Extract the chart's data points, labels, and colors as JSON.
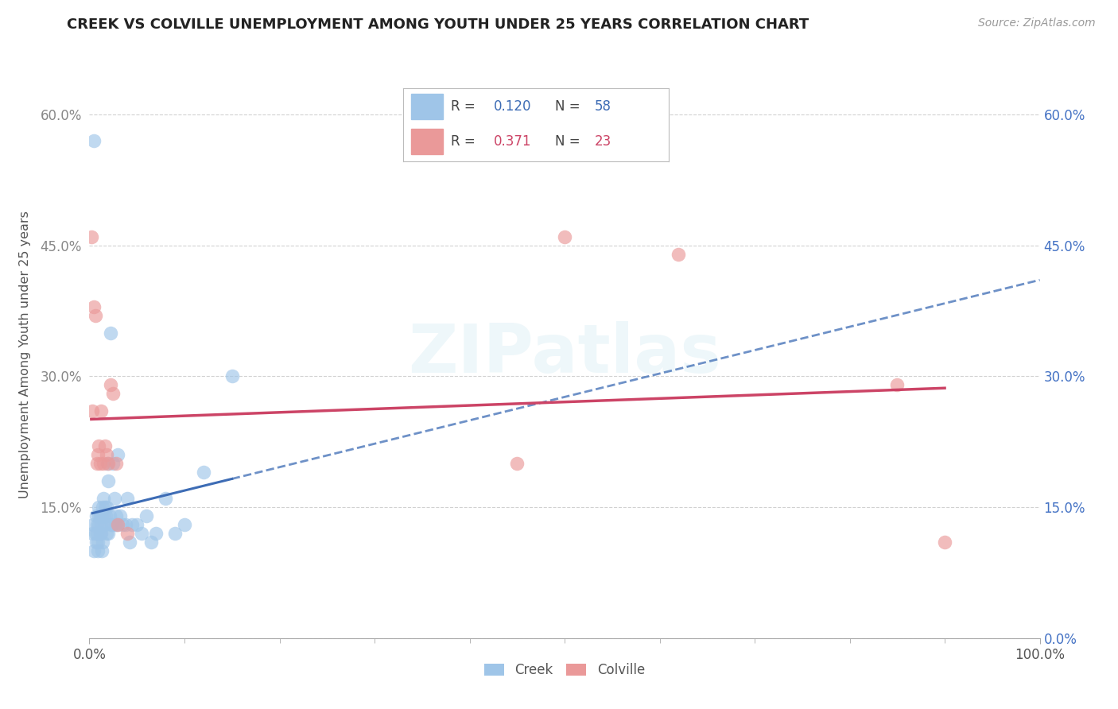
{
  "title": "CREEK VS COLVILLE UNEMPLOYMENT AMONG YOUTH UNDER 25 YEARS CORRELATION CHART",
  "source": "Source: ZipAtlas.com",
  "ylabel": "Unemployment Among Youth under 25 years",
  "xlim": [
    0,
    1.0
  ],
  "ylim": [
    0,
    0.65
  ],
  "xtick_positions": [
    0.0,
    1.0
  ],
  "xticklabels": [
    "0.0%",
    "100.0%"
  ],
  "yticks": [
    0.0,
    0.15,
    0.3,
    0.45,
    0.6
  ],
  "yticklabels_left": [
    "",
    "15.0%",
    "30.0%",
    "45.0%",
    "60.0%"
  ],
  "yticklabels_right": [
    "0.0%",
    "15.0%",
    "30.0%",
    "45.0%",
    "60.0%"
  ],
  "right_ytick_color": "#4472c4",
  "left_ytick_color": "#888888",
  "creek_color": "#9fc5e8",
  "colville_color": "#ea9999",
  "creek_line_color": "#3d6cb5",
  "colville_line_color": "#cc4466",
  "creek_R": 0.12,
  "creek_N": 58,
  "colville_R": 0.371,
  "colville_N": 23,
  "background_color": "#ffffff",
  "grid_color": "#cccccc",
  "watermark_text": "ZIPatlas",
  "creek_x": [
    0.003,
    0.004,
    0.005,
    0.005,
    0.006,
    0.007,
    0.007,
    0.008,
    0.008,
    0.009,
    0.009,
    0.01,
    0.01,
    0.01,
    0.011,
    0.011,
    0.012,
    0.012,
    0.013,
    0.013,
    0.014,
    0.014,
    0.015,
    0.015,
    0.016,
    0.016,
    0.017,
    0.018,
    0.018,
    0.019,
    0.02,
    0.02,
    0.021,
    0.022,
    0.023,
    0.024,
    0.025,
    0.026,
    0.027,
    0.028,
    0.029,
    0.03,
    0.032,
    0.035,
    0.038,
    0.04,
    0.042,
    0.045,
    0.05,
    0.055,
    0.06,
    0.065,
    0.07,
    0.08,
    0.09,
    0.1,
    0.12,
    0.15
  ],
  "creek_y": [
    0.12,
    0.13,
    0.1,
    0.57,
    0.12,
    0.11,
    0.14,
    0.13,
    0.12,
    0.1,
    0.11,
    0.14,
    0.13,
    0.15,
    0.12,
    0.14,
    0.13,
    0.12,
    0.1,
    0.14,
    0.11,
    0.15,
    0.14,
    0.16,
    0.13,
    0.15,
    0.14,
    0.15,
    0.12,
    0.2,
    0.18,
    0.12,
    0.14,
    0.35,
    0.13,
    0.13,
    0.2,
    0.16,
    0.13,
    0.14,
    0.13,
    0.21,
    0.14,
    0.13,
    0.13,
    0.16,
    0.11,
    0.13,
    0.13,
    0.12,
    0.14,
    0.11,
    0.12,
    0.16,
    0.12,
    0.13,
    0.19,
    0.3
  ],
  "colville_x": [
    0.002,
    0.003,
    0.005,
    0.006,
    0.008,
    0.009,
    0.01,
    0.011,
    0.012,
    0.015,
    0.016,
    0.018,
    0.02,
    0.022,
    0.025,
    0.028,
    0.03,
    0.04,
    0.45,
    0.5,
    0.62,
    0.85,
    0.9
  ],
  "colville_y": [
    0.46,
    0.26,
    0.38,
    0.37,
    0.2,
    0.21,
    0.22,
    0.2,
    0.26,
    0.2,
    0.22,
    0.21,
    0.2,
    0.29,
    0.28,
    0.2,
    0.13,
    0.12,
    0.2,
    0.46,
    0.44,
    0.29,
    0.11
  ]
}
